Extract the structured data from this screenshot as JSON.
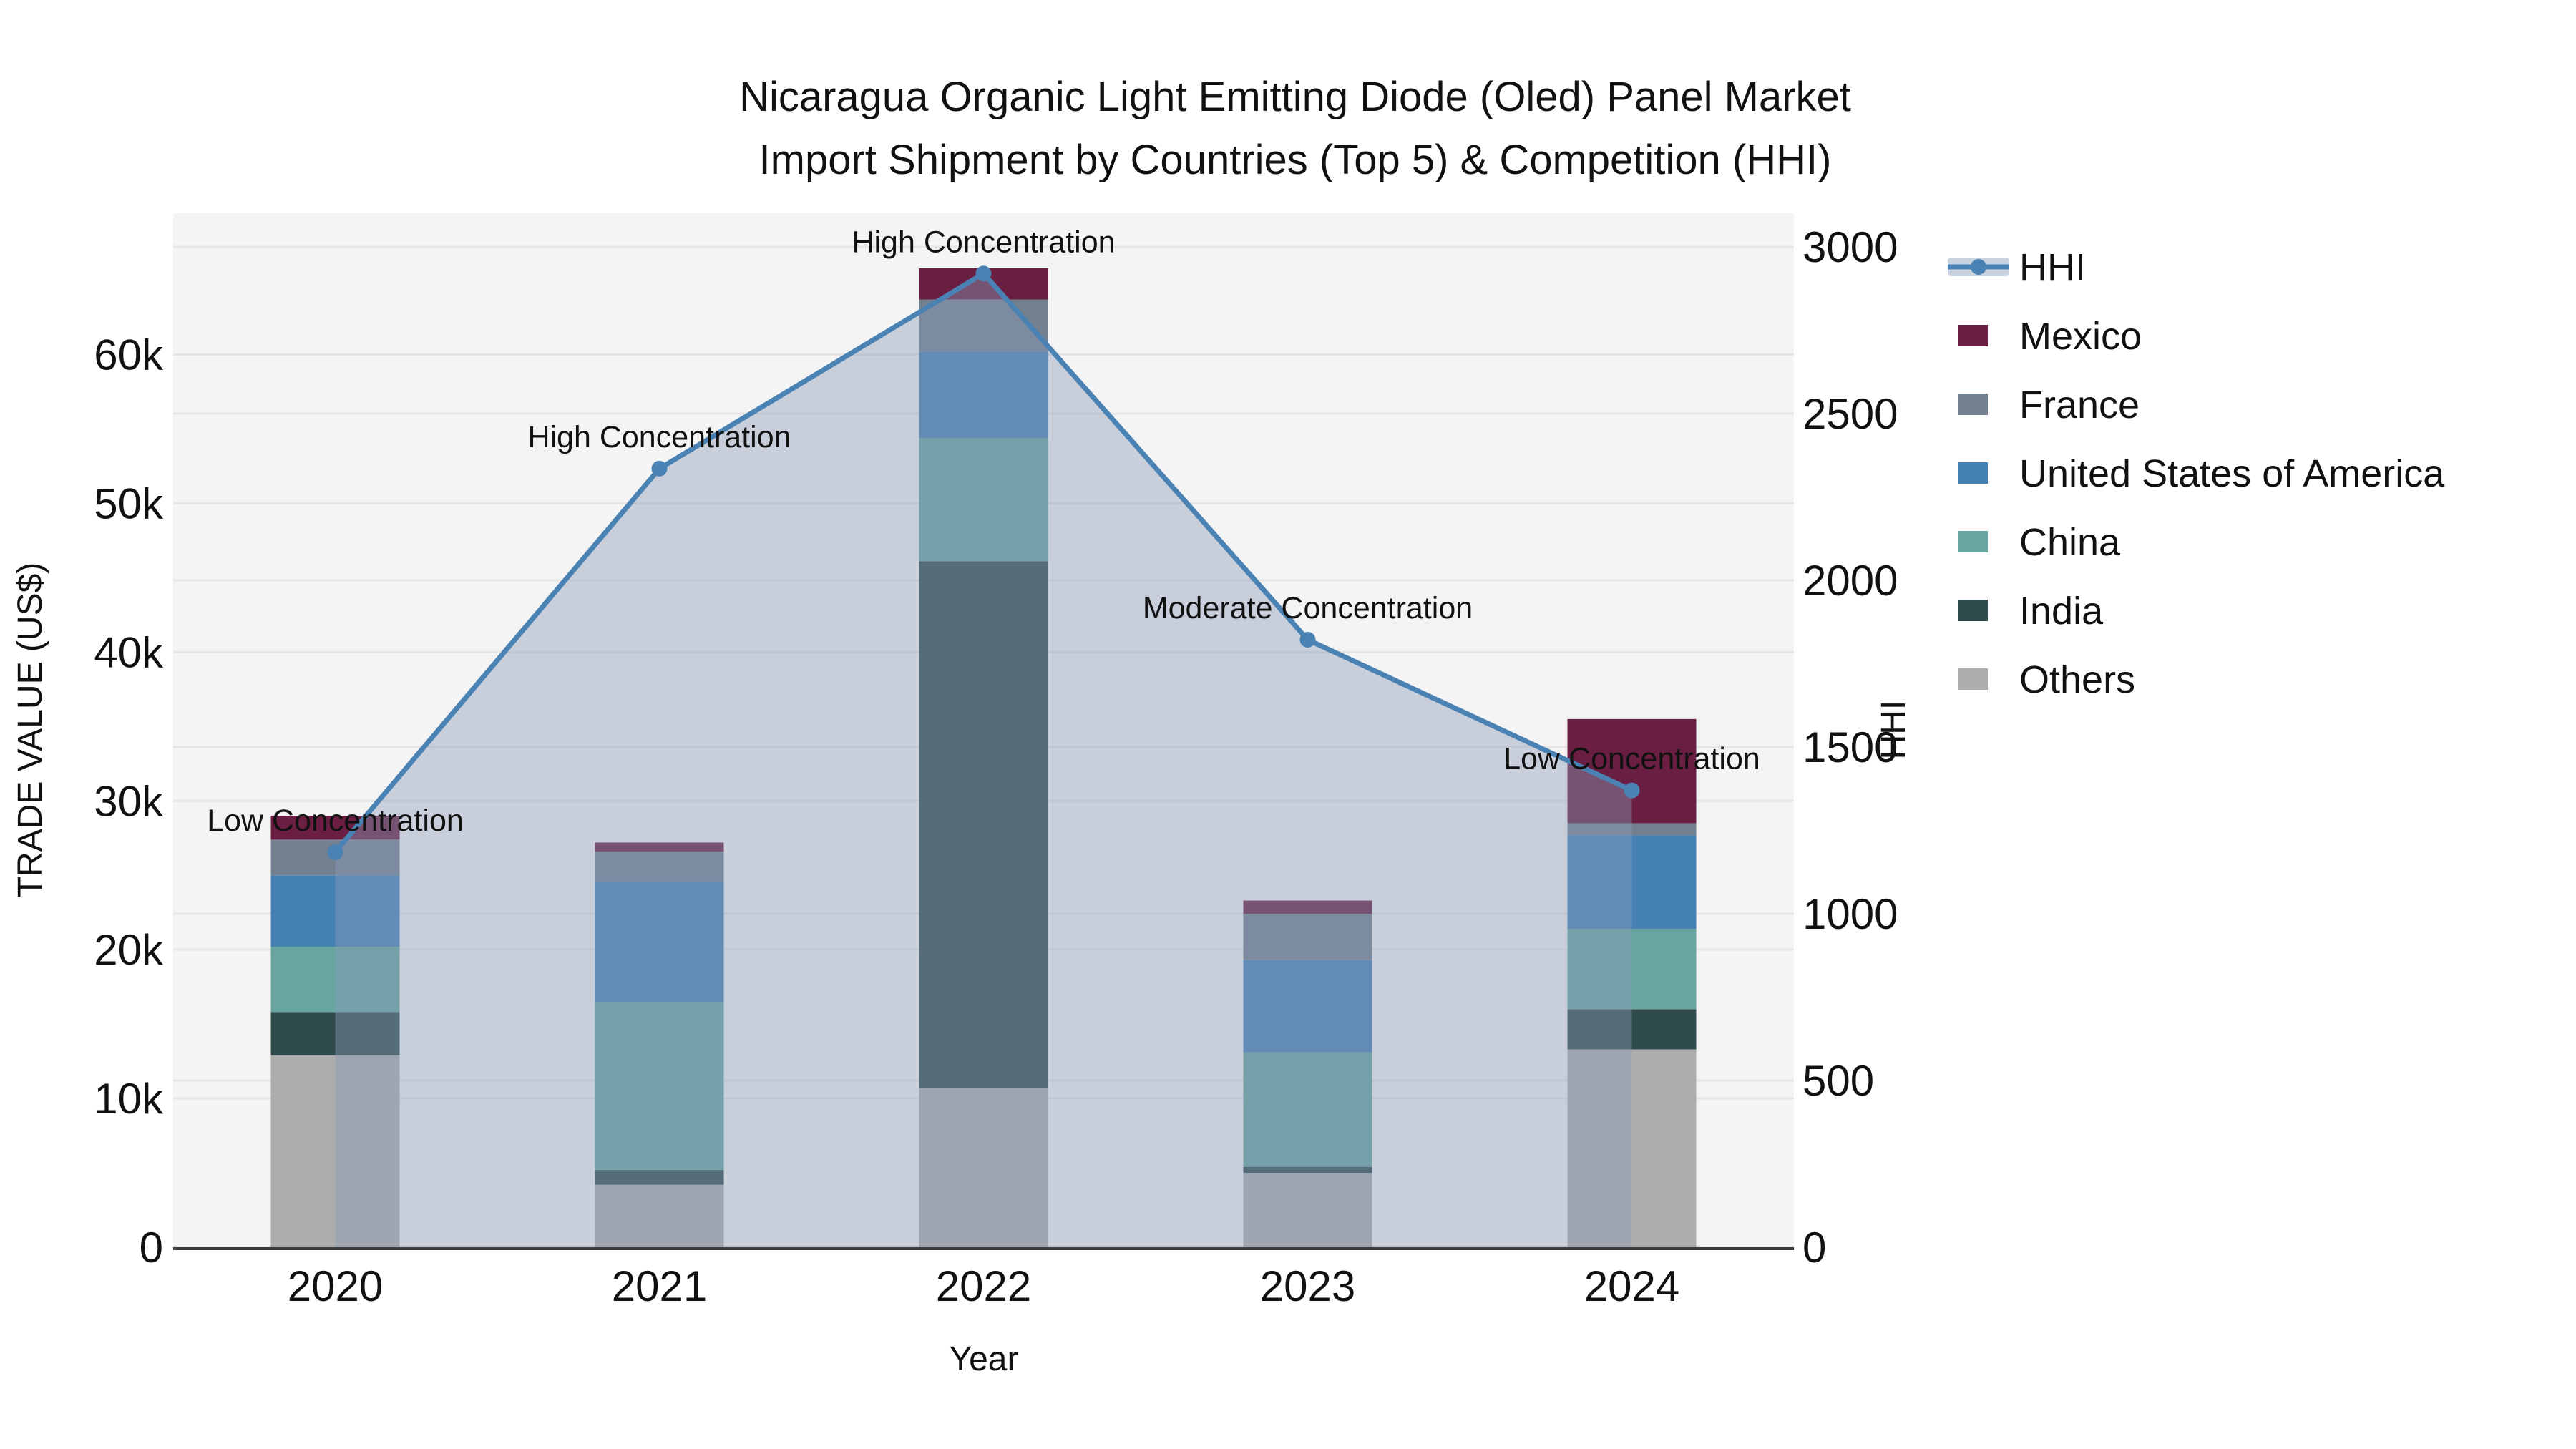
{
  "title": {
    "line1": "Nicaragua Organic Light Emitting Diode (Oled) Panel Market",
    "line2": "Import Shipment by Countries (Top 5) & Competition (HHI)"
  },
  "colors": {
    "figure_background": "#ffffff",
    "plot_background": "#f4f4f4",
    "gridline": "#e6e6e6",
    "axis_spine": "#3f3f3f",
    "hhi_line": "#4a82b4",
    "hhi_area_fill": "rgba(138,156,184,0.42)",
    "legend_line_band": "#c9d3e0"
  },
  "legend": [
    {
      "label": "HHI",
      "type": "line",
      "color": "#4a82b4"
    },
    {
      "label": "Mexico",
      "type": "box",
      "color": "#6a1f42"
    },
    {
      "label": "France",
      "type": "box",
      "color": "#72808f"
    },
    {
      "label": "United States of America",
      "type": "box",
      "color": "#4681b6"
    },
    {
      "label": "China",
      "type": "box",
      "color": "#68a5a1"
    },
    {
      "label": "India",
      "type": "box",
      "color": "#2f4b4c"
    },
    {
      "label": "Others",
      "type": "box",
      "color": "#adadad"
    }
  ],
  "chart_data": {
    "type": "bar+line",
    "title": "Nicaragua Organic Light Emitting Diode (Oled) Panel Market Import Shipment by Countries (Top 5) & Competition (HHI)",
    "categories": [
      "2020",
      "2021",
      "2022",
      "2023",
      "2024"
    ],
    "stack_order_bottom_to_top": [
      "Others",
      "India",
      "China",
      "United States of America",
      "France",
      "Mexico"
    ],
    "series": [
      {
        "name": "Others",
        "color": "#adadad",
        "values": [
          12900,
          4200,
          10700,
          5000,
          13300
        ]
      },
      {
        "name": "India",
        "color": "#2f4b4c",
        "values": [
          2900,
          1000,
          35400,
          400,
          2700
        ]
      },
      {
        "name": "China",
        "color": "#68a5a1",
        "values": [
          4400,
          11300,
          8300,
          7700,
          5400
        ]
      },
      {
        "name": "United States of America",
        "color": "#4681b6",
        "values": [
          4800,
          8100,
          5800,
          6200,
          6300
        ]
      },
      {
        "name": "France",
        "color": "#72808f",
        "values": [
          2400,
          2000,
          3500,
          3100,
          800
        ]
      },
      {
        "name": "Mexico",
        "color": "#6a1f42",
        "values": [
          1600,
          600,
          2100,
          900,
          7000
        ]
      }
    ],
    "bar_totals": [
      29000,
      27200,
      65800,
      23300,
      35500
    ],
    "line_series": {
      "name": "HHI",
      "color": "#4a82b4",
      "axis": "right",
      "values": [
        1185,
        2335,
        2920,
        1822,
        1370
      ]
    },
    "annotations": [
      {
        "year": "2020",
        "label": "Low Concentration"
      },
      {
        "year": "2021",
        "label": "High Concentration"
      },
      {
        "year": "2022",
        "label": "High Concentration"
      },
      {
        "year": "2023",
        "label": "Moderate Concentration"
      },
      {
        "year": "2024",
        "label": "Low Concentration"
      }
    ],
    "y_left": {
      "label": "TRADE VALUE (US$)",
      "ticks": [
        {
          "label": "0",
          "value": 0
        },
        {
          "label": "10k",
          "value": 10000
        },
        {
          "label": "20k",
          "value": 20000
        },
        {
          "label": "30k",
          "value": 30000
        },
        {
          "label": "40k",
          "value": 40000
        },
        {
          "label": "50k",
          "value": 50000
        },
        {
          "label": "60k",
          "value": 60000
        }
      ],
      "range": [
        0,
        69500
      ]
    },
    "y_right": {
      "label": "HHI",
      "ticks": [
        {
          "label": "0",
          "value": 0
        },
        {
          "label": "500",
          "value": 500
        },
        {
          "label": "1000",
          "value": 1000
        },
        {
          "label": "1500",
          "value": 1500
        },
        {
          "label": "2000",
          "value": 2000
        },
        {
          "label": "2500",
          "value": 2500
        },
        {
          "label": "3000",
          "value": 3000
        }
      ]
    },
    "x": {
      "label": "Year"
    },
    "legend_position": "right",
    "grid": true
  }
}
